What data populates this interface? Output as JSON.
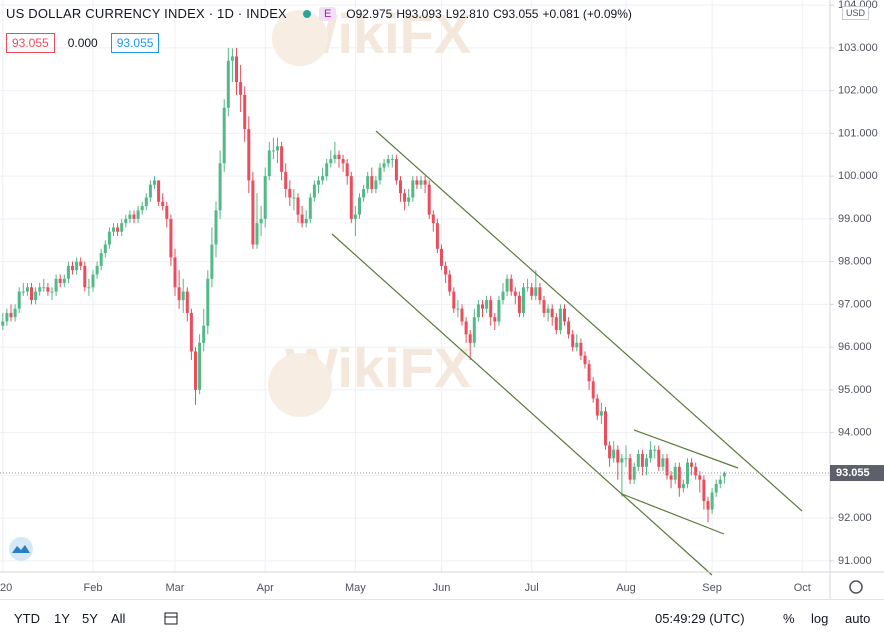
{
  "header": {
    "title": "US DOLLAR CURRENCY INDEX · 1D · INDEX",
    "badge": "E",
    "ohlc": [
      {
        "label": "O",
        "value": "92.975"
      },
      {
        "label": "H",
        "value": "93.093"
      },
      {
        "label": "L",
        "value": "92.810"
      },
      {
        "label": "C",
        "value": "93.055"
      }
    ],
    "change": "+0.081 (+0.09%)",
    "indicators": [
      "93.055",
      "0.000",
      "93.055"
    ],
    "currency": "USD"
  },
  "watermark": "WikiFX",
  "toolbar": {
    "ranges": [
      "YTD",
      "1Y",
      "5Y",
      "All"
    ],
    "time": "05:49:29 (UTC)",
    "options": [
      "%",
      "log",
      "auto"
    ]
  },
  "chart_data": {
    "type": "candlestick",
    "up_color": "#53b987",
    "down_color": "#eb4d5c",
    "grid": true,
    "ylim": [
      90.74,
      104.12
    ],
    "yticks": [
      {
        "value": 91,
        "label": "91.000"
      },
      {
        "value": 92,
        "label": "92.000"
      },
      {
        "value": 93,
        "label": "93.000"
      },
      {
        "value": 94,
        "label": "94.000"
      },
      {
        "value": 95,
        "label": "95.000"
      },
      {
        "value": 96,
        "label": "96.000"
      },
      {
        "value": 97,
        "label": "97.000"
      },
      {
        "value": 98,
        "label": "98.000"
      },
      {
        "value": 99,
        "label": "99.000"
      },
      {
        "value": 100,
        "label": "100.000"
      },
      {
        "value": 101,
        "label": "101.000"
      },
      {
        "value": 102,
        "label": "102.000"
      },
      {
        "value": 103,
        "label": "103.000"
      },
      {
        "value": 104,
        "label": "104.000"
      }
    ],
    "categories": [
      "20",
      null,
      null,
      null,
      null,
      null,
      null,
      null,
      null,
      null,
      null,
      null,
      null,
      null,
      null,
      null,
      null,
      null,
      null,
      null,
      null,
      null,
      "Feb",
      null,
      null,
      null,
      null,
      null,
      null,
      null,
      null,
      null,
      null,
      null,
      null,
      null,
      null,
      null,
      null,
      null,
      null,
      null,
      "Mar",
      null,
      null,
      null,
      null,
      null,
      null,
      null,
      null,
      null,
      null,
      null,
      null,
      null,
      null,
      null,
      null,
      null,
      null,
      null,
      null,
      null,
      "Apr",
      null,
      null,
      null,
      null,
      null,
      null,
      null,
      null,
      null,
      null,
      null,
      null,
      null,
      null,
      null,
      null,
      null,
      null,
      null,
      null,
      null,
      "May",
      null,
      null,
      null,
      null,
      null,
      null,
      null,
      null,
      null,
      null,
      null,
      null,
      null,
      null,
      null,
      null,
      null,
      null,
      null,
      null,
      "Jun",
      null,
      null,
      null,
      null,
      null,
      null,
      null,
      null,
      null,
      null,
      null,
      null,
      null,
      null,
      null,
      null,
      null,
      null,
      null,
      null,
      null,
      "Jul",
      null,
      null,
      null,
      null,
      null,
      null,
      null,
      null,
      null,
      null,
      null,
      null,
      null,
      null,
      null,
      null,
      null,
      null,
      null,
      null,
      null,
      null,
      "Aug",
      null,
      null,
      null,
      null,
      null,
      null,
      null,
      null,
      null,
      null,
      null,
      null,
      null,
      null,
      null,
      null,
      null,
      null,
      null,
      null,
      "Sep",
      null,
      null,
      null,
      null,
      null,
      null,
      null,
      null,
      null,
      null,
      null,
      null,
      null,
      null,
      null,
      null,
      null,
      null,
      null,
      null,
      null,
      "Oct"
    ],
    "open": [
      96.5,
      96.6,
      96.8,
      96.7,
      96.9,
      97.3,
      97.3,
      97.4,
      97.1,
      97.3,
      97.4,
      97.4,
      97.3,
      97.3,
      97.6,
      97.5,
      97.6,
      97.9,
      97.8,
      98.0,
      97.9,
      97.4,
      97.4,
      97.7,
      97.9,
      98.2,
      98.4,
      98.7,
      98.8,
      98.7,
      98.9,
      99.0,
      99.1,
      99.0,
      99.2,
      99.3,
      99.5,
      99.8,
      99.9,
      99.4,
      99.3,
      99.0,
      98.1,
      97.4,
      97.1,
      97.3,
      96.8,
      95.9,
      95.0,
      96.1,
      96.5,
      97.6,
      98.4,
      99.2,
      100.3,
      101.6,
      102.7,
      102.8,
      102.2,
      101.9,
      101.1,
      99.9,
      98.4,
      98.9,
      99.0,
      100.0,
      100.6,
      100.6,
      100.7,
      100.1,
      99.7,
      99.5,
      99.5,
      99.1,
      98.9,
      99.0,
      99.5,
      99.8,
      99.9,
      100.0,
      100.3,
      100.4,
      100.5,
      100.4,
      100.3,
      100.0,
      99.0,
      99.1,
      99.5,
      99.7,
      100.0,
      99.7,
      99.9,
      100.2,
      100.3,
      100.4,
      100.4,
      99.9,
      99.6,
      99.4,
      99.5,
      99.9,
      99.8,
      99.9,
      99.8,
      99.1,
      98.9,
      98.3,
      97.9,
      97.7,
      97.3,
      96.9,
      96.9,
      96.6,
      96.3,
      96.1,
      96.7,
      97.0,
      96.9,
      97.1,
      96.7,
      96.6,
      97.1,
      97.3,
      97.6,
      97.3,
      97.2,
      96.8,
      97.4,
      97.4,
      97.2,
      97.4,
      97.1,
      96.8,
      96.9,
      96.7,
      96.4,
      96.9,
      96.6,
      96.3,
      96.0,
      96.1,
      95.8,
      95.6,
      95.2,
      94.8,
      94.4,
      94.5,
      93.7,
      93.4,
      93.6,
      93.3,
      93.4,
      93.4,
      92.9,
      93.2,
      93.5,
      93.2,
      93.4,
      93.6,
      93.6,
      93.2,
      93.4,
      93.0,
      92.9,
      93.2,
      92.7,
      92.8,
      93.3,
      93.2,
      93.0,
      92.9,
      92.4,
      92.2,
      92.6,
      92.8,
      92.975,
      null,
      null,
      null,
      null,
      null,
      null,
      null,
      null,
      null,
      null,
      null,
      null,
      null,
      null,
      null,
      null,
      null,
      null,
      null
    ],
    "high": [
      96.8,
      96.9,
      97.0,
      97.0,
      97.4,
      97.5,
      97.5,
      97.5,
      97.4,
      97.5,
      97.6,
      97.5,
      97.4,
      97.7,
      97.7,
      97.7,
      98.0,
      98.0,
      98.1,
      98.1,
      98.0,
      97.6,
      97.8,
      98.0,
      98.3,
      98.5,
      98.8,
      98.9,
      98.9,
      99.0,
      99.1,
      99.2,
      99.2,
      99.3,
      99.4,
      99.6,
      99.9,
      100.0,
      99.9,
      99.6,
      99.4,
      99.1,
      98.3,
      97.8,
      97.6,
      97.4,
      96.9,
      96.0,
      96.3,
      96.9,
      97.8,
      98.8,
      99.4,
      100.6,
      101.8,
      103.0,
      102.99,
      103.0,
      102.6,
      102.1,
      101.4,
      100.1,
      99.6,
      99.3,
      100.2,
      100.8,
      100.9,
      100.9,
      100.8,
      100.3,
      99.9,
      99.7,
      99.6,
      99.3,
      99.2,
      99.6,
      99.9,
      100.0,
      100.2,
      100.4,
      100.6,
      100.8,
      100.6,
      100.5,
      100.4,
      100.1,
      99.3,
      99.6,
      99.8,
      100.1,
      100.2,
      100.0,
      100.3,
      100.4,
      100.5,
      100.5,
      100.5,
      100.0,
      99.7,
      99.7,
      100.0,
      100.0,
      100.0,
      100.0,
      99.9,
      99.2,
      99.0,
      98.4,
      98.0,
      97.8,
      97.4,
      97.1,
      97.0,
      96.7,
      96.4,
      96.9,
      97.1,
      97.1,
      97.2,
      97.2,
      96.8,
      97.2,
      97.5,
      97.7,
      97.7,
      97.4,
      97.3,
      97.5,
      97.6,
      97.5,
      97.8,
      97.5,
      97.2,
      97.0,
      97.0,
      96.8,
      97.0,
      97.0,
      96.7,
      96.4,
      96.3,
      96.2,
      95.9,
      95.7,
      95.3,
      94.9,
      94.7,
      94.6,
      93.8,
      93.8,
      93.7,
      93.5,
      93.7,
      93.5,
      93.3,
      93.6,
      93.6,
      93.5,
      93.8,
      93.7,
      93.7,
      93.5,
      93.5,
      93.1,
      93.3,
      93.3,
      92.9,
      93.4,
      93.4,
      93.3,
      93.1,
      93.0,
      92.5,
      92.7,
      92.9,
      93.0,
      93.093,
      null,
      null,
      null,
      null,
      null,
      null,
      null,
      null,
      null,
      null,
      null,
      null,
      null,
      null,
      null,
      null,
      null,
      null,
      null
    ],
    "low": [
      96.4,
      96.5,
      96.6,
      96.6,
      96.8,
      97.2,
      97.2,
      97.0,
      97.0,
      97.2,
      97.3,
      97.2,
      97.1,
      97.2,
      97.4,
      97.4,
      97.5,
      97.7,
      97.7,
      97.8,
      97.3,
      97.2,
      97.3,
      97.6,
      97.8,
      98.1,
      98.3,
      98.6,
      98.6,
      98.6,
      98.8,
      98.9,
      98.9,
      98.9,
      99.1,
      99.2,
      99.4,
      99.7,
      99.3,
      99.2,
      98.8,
      97.9,
      97.2,
      96.9,
      96.8,
      96.6,
      95.7,
      94.65,
      94.9,
      95.9,
      96.3,
      97.4,
      98.1,
      99.0,
      100.1,
      101.4,
      102.2,
      101.9,
      101.5,
      100.8,
      99.6,
      98.3,
      98.3,
      98.6,
      98.8,
      99.9,
      100.4,
      100.3,
      99.9,
      99.5,
      99.3,
      99.2,
      98.9,
      98.8,
      98.8,
      98.9,
      99.4,
      99.6,
      99.8,
      99.9,
      100.2,
      100.3,
      100.2,
      100.1,
      99.8,
      98.9,
      98.6,
      99.0,
      99.4,
      99.6,
      99.6,
      99.6,
      99.8,
      100.1,
      100.2,
      100.2,
      99.8,
      99.4,
      99.2,
      99.3,
      99.4,
      99.7,
      99.7,
      99.6,
      99.0,
      98.7,
      98.2,
      97.8,
      97.5,
      97.2,
      96.8,
      96.7,
      96.5,
      96.1,
      95.7,
      96.0,
      96.6,
      96.7,
      96.8,
      96.5,
      96.4,
      96.5,
      97.0,
      97.2,
      97.2,
      97.0,
      96.7,
      96.7,
      97.3,
      97.1,
      97.1,
      97.0,
      96.7,
      96.6,
      96.5,
      96.3,
      96.3,
      96.5,
      96.2,
      95.9,
      95.9,
      95.7,
      95.5,
      95.0,
      94.7,
      94.3,
      94.2,
      93.6,
      93.2,
      93.3,
      92.9,
      92.5,
      93.2,
      92.8,
      92.8,
      93.1,
      93.0,
      93.0,
      93.3,
      93.4,
      93.1,
      93.1,
      92.9,
      92.7,
      92.8,
      92.5,
      92.6,
      92.7,
      93.0,
      92.9,
      92.6,
      92.2,
      91.9,
      92.1,
      92.5,
      92.7,
      92.81,
      null,
      null,
      null,
      null,
      null,
      null,
      null,
      null,
      null,
      null,
      null,
      null,
      null,
      null,
      null,
      null,
      null,
      null,
      null
    ],
    "close": [
      96.6,
      96.8,
      96.7,
      96.9,
      97.3,
      97.3,
      97.4,
      97.1,
      97.3,
      97.4,
      97.4,
      97.3,
      97.3,
      97.6,
      97.5,
      97.6,
      97.9,
      97.8,
      98.0,
      97.9,
      97.4,
      97.4,
      97.7,
      97.9,
      98.2,
      98.4,
      98.7,
      98.8,
      98.7,
      98.9,
      99.0,
      99.1,
      99.0,
      99.2,
      99.3,
      99.5,
      99.8,
      99.9,
      99.4,
      99.3,
      99.0,
      98.1,
      97.4,
      97.1,
      97.3,
      96.8,
      95.9,
      95.0,
      96.1,
      96.5,
      97.6,
      98.4,
      99.2,
      100.3,
      101.6,
      102.7,
      102.8,
      102.2,
      101.9,
      101.1,
      99.9,
      98.4,
      98.9,
      99.0,
      100.0,
      100.6,
      100.6,
      100.7,
      100.1,
      99.7,
      99.5,
      99.5,
      99.1,
      98.9,
      99.0,
      99.5,
      99.8,
      99.9,
      100.0,
      100.3,
      100.4,
      100.5,
      100.4,
      100.3,
      100.0,
      99.0,
      99.1,
      99.5,
      99.7,
      100.0,
      99.7,
      99.9,
      100.2,
      100.3,
      100.4,
      100.4,
      99.9,
      99.6,
      99.4,
      99.5,
      99.9,
      99.8,
      99.9,
      99.8,
      99.1,
      98.9,
      98.3,
      97.9,
      97.7,
      97.3,
      96.9,
      96.9,
      96.6,
      96.3,
      96.1,
      96.7,
      97.0,
      96.9,
      97.1,
      96.7,
      96.6,
      97.1,
      97.3,
      97.6,
      97.3,
      97.2,
      96.8,
      97.4,
      97.4,
      97.2,
      97.4,
      97.1,
      96.8,
      96.9,
      96.7,
      96.4,
      96.9,
      96.6,
      96.3,
      96.0,
      96.1,
      95.8,
      95.6,
      95.2,
      94.8,
      94.4,
      94.5,
      93.7,
      93.4,
      93.6,
      93.3,
      93.4,
      93.4,
      92.9,
      93.2,
      93.5,
      93.2,
      93.4,
      93.6,
      93.6,
      93.2,
      93.4,
      93.0,
      92.9,
      93.2,
      92.7,
      92.8,
      93.3,
      93.2,
      93.0,
      92.9,
      92.4,
      92.2,
      92.6,
      92.8,
      92.9,
      93.055,
      null,
      null,
      null,
      null,
      null,
      null,
      null,
      null,
      null,
      null,
      null,
      null,
      null,
      null,
      null,
      null,
      null,
      null,
      null
    ]
  }
}
